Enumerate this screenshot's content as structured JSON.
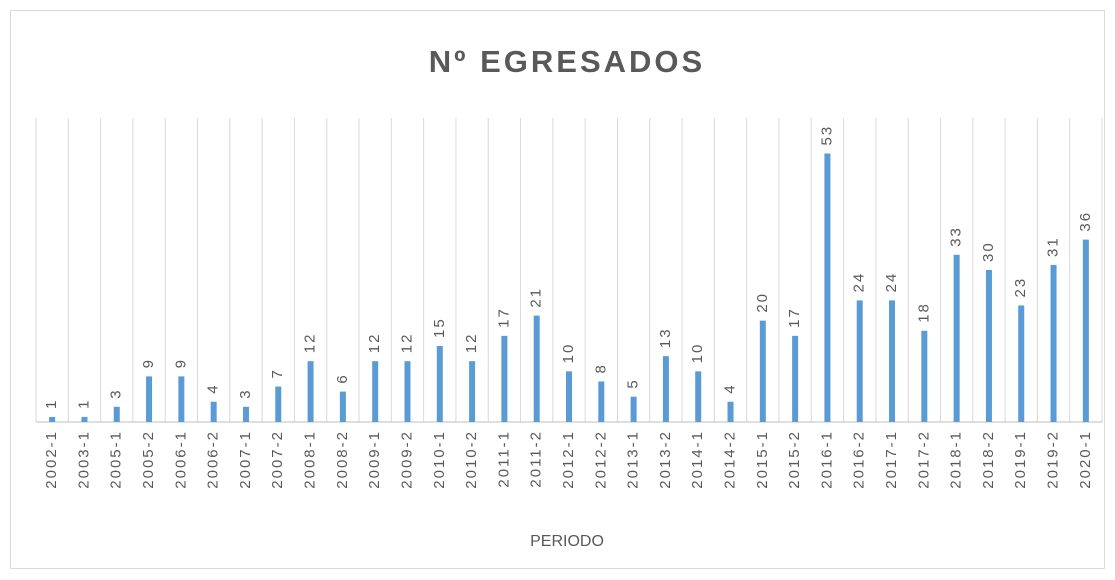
{
  "chart_data": {
    "type": "bar",
    "title": "Nº EGRESADOS",
    "x_label": "PERIODO",
    "categories": [
      "2002-1",
      "2003-1",
      "2005-1",
      "2005-2",
      "2006-1",
      "2006-2",
      "2007-1",
      "2007-2",
      "2008-1",
      "2008-2",
      "2009-1",
      "2009-2",
      "2010-1",
      "2010-2",
      "2011-1",
      "2011-2",
      "2012-1",
      "2012-2",
      "2013-1",
      "2013-2",
      "2014-1",
      "2014-2",
      "2015-1",
      "2015-2",
      "2016-1",
      "2016-2",
      "2017-1",
      "2017-2",
      "2018-1",
      "2018-2",
      "2019-1",
      "2019-2",
      "2020-1"
    ],
    "values": [
      1,
      1,
      3,
      9,
      9,
      4,
      3,
      7,
      12,
      6,
      12,
      12,
      15,
      12,
      17,
      21,
      10,
      8,
      5,
      13,
      10,
      4,
      20,
      17,
      53,
      24,
      24,
      18,
      33,
      30,
      23,
      31,
      36
    ],
    "color": "#5b9bd5",
    "ylim": [
      0,
      60
    ]
  }
}
